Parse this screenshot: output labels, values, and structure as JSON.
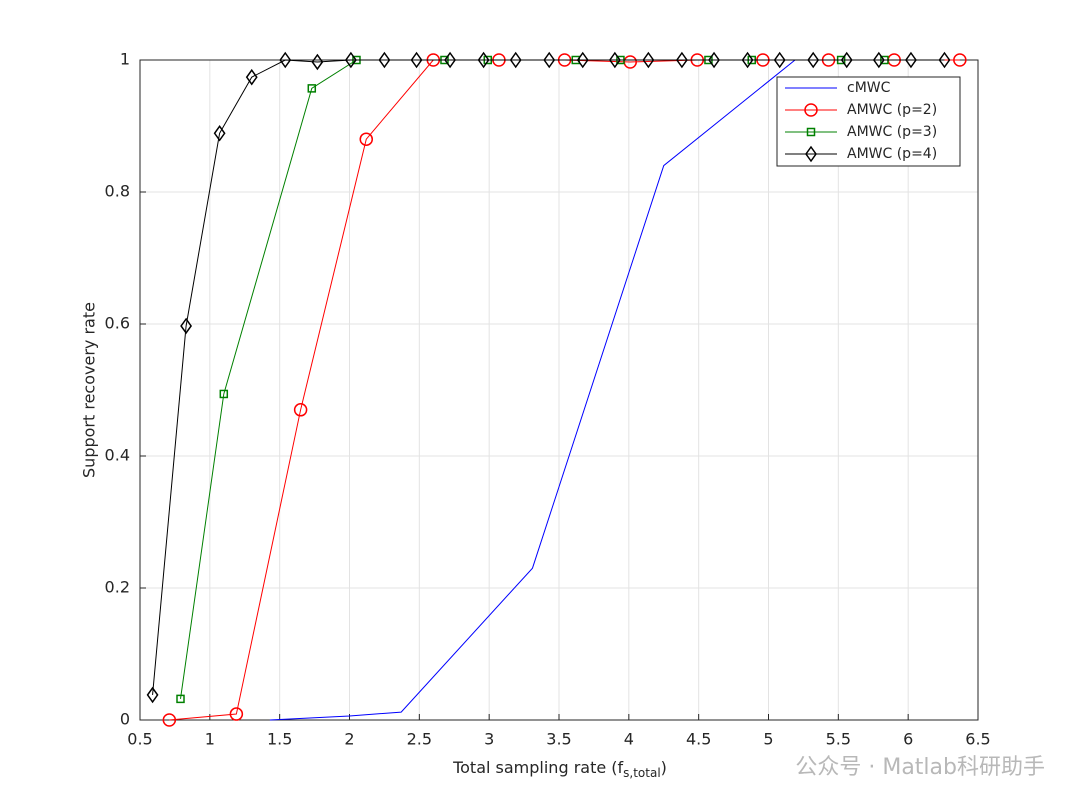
{
  "chart_data": {
    "type": "line",
    "xlabel": {
      "text": "Total sampling rate (f",
      "sub": "s,total",
      "end": ")"
    },
    "ylabel": "Support recovery rate",
    "xlim": [
      0.5,
      6.5
    ],
    "ylim": [
      0,
      1
    ],
    "xticks": [
      0.5,
      1,
      1.5,
      2,
      2.5,
      3,
      3.5,
      4,
      4.5,
      5,
      5.5,
      6,
      6.5
    ],
    "yticks": [
      0,
      0.2,
      0.4,
      0.6,
      0.8,
      1
    ],
    "grid": true,
    "legend": "top-right",
    "watermark": "公众号 · Matlab科研助手",
    "series": [
      {
        "name": "cMWC",
        "color": "#0000ff",
        "marker": "none",
        "x": [
          1.43,
          2.0,
          2.37,
          3.31,
          4.25,
          5.19,
          6.13
        ],
        "values": [
          0,
          0.006,
          0.012,
          0.23,
          0.84,
          1,
          1
        ]
      },
      {
        "name": "AMWC (p=2)",
        "color": "#ff0000",
        "marker": "circle",
        "x": [
          0.71,
          1.19,
          1.65,
          2.12,
          2.6,
          3.07,
          3.54,
          4.01,
          4.49,
          4.96,
          5.43,
          5.9,
          6.37
        ],
        "values": [
          0,
          0.009,
          0.47,
          0.88,
          1,
          1,
          1,
          0.997,
          1,
          1,
          1,
          1,
          1
        ]
      },
      {
        "name": "AMWC (p=3)",
        "color": "#008000",
        "marker": "square",
        "x": [
          0.79,
          1.1,
          1.73,
          2.05,
          2.68,
          2.99,
          3.62,
          3.94,
          4.57,
          4.88,
          5.52,
          5.83
        ],
        "values": [
          0.032,
          0.494,
          0.957,
          1,
          1,
          1,
          1,
          1,
          1,
          1,
          1,
          1
        ]
      },
      {
        "name": "AMWC (p=4)",
        "color": "#000000",
        "marker": "diamond",
        "x": [
          0.59,
          0.83,
          1.07,
          1.3,
          1.54,
          1.77,
          2.01,
          2.25,
          2.48,
          2.72,
          2.96,
          3.19,
          3.43,
          3.67,
          3.9,
          4.14,
          4.38,
          4.61,
          4.85,
          5.08,
          5.32,
          5.56,
          5.79,
          6.02,
          6.26
        ],
        "values": [
          0.038,
          0.597,
          0.889,
          0.974,
          1,
          0.997,
          1,
          1,
          1,
          1,
          1,
          1,
          1,
          1,
          1,
          1,
          1,
          1,
          1,
          1,
          1,
          1,
          1,
          1,
          1
        ]
      }
    ]
  }
}
